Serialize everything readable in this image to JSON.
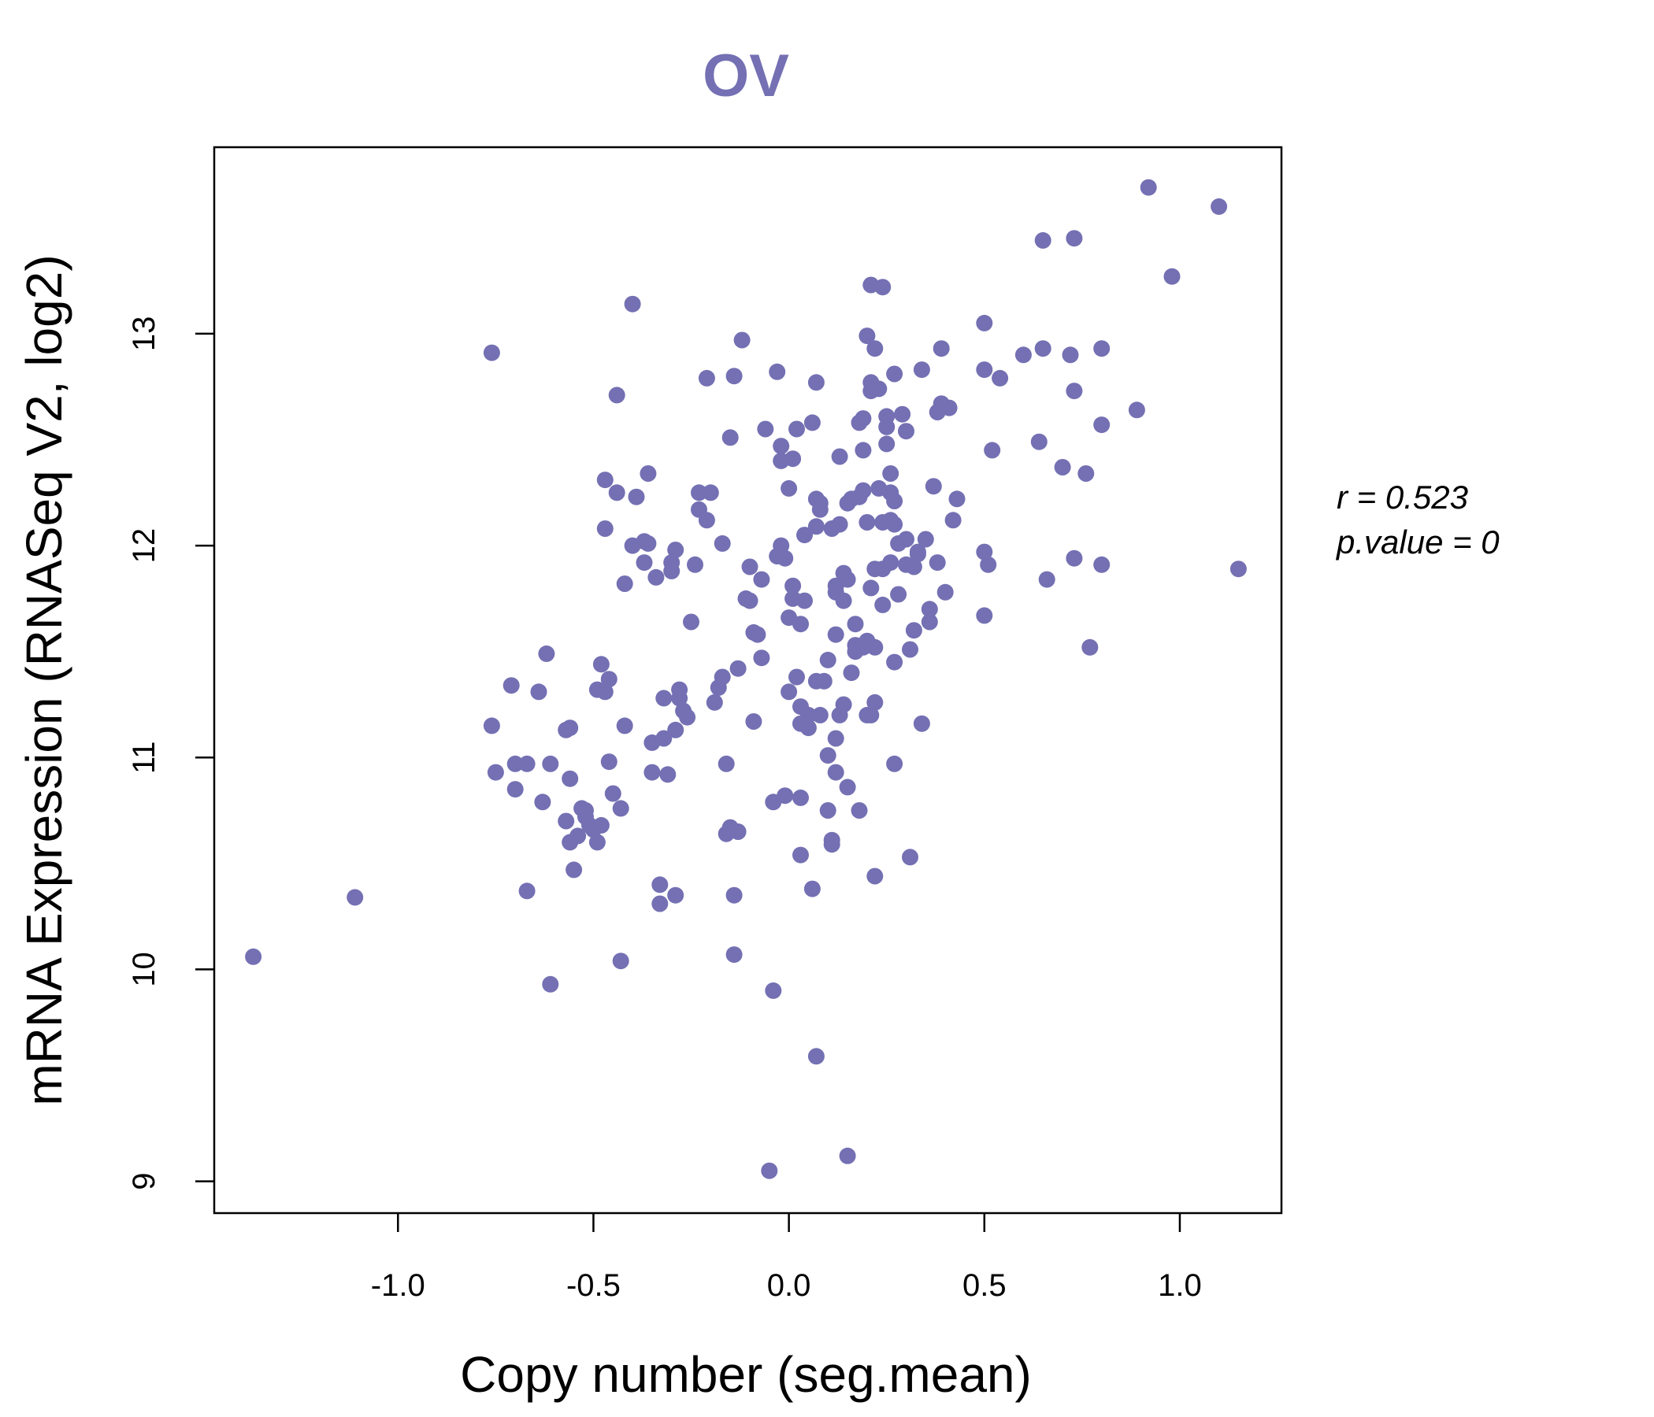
{
  "chart_data": {
    "type": "scatter",
    "title": "OV",
    "xlabel": "Copy number (seg.mean)",
    "ylabel": "mRNA Expression (RNASeq V2, log2)",
    "xlim": [
      -1.47,
      1.26
    ],
    "ylim": [
      8.85,
      13.88
    ],
    "x_ticks": [
      -1.0,
      -0.5,
      0.0,
      0.5,
      1.0
    ],
    "x_tick_labels": [
      "-1.0",
      "-0.5",
      "0.0",
      "0.5",
      "1.0"
    ],
    "y_ticks": [
      9,
      10,
      11,
      12,
      13
    ],
    "y_tick_labels": [
      "9",
      "10",
      "11",
      "12",
      "13"
    ],
    "grid": false,
    "point_color": "#7470B3",
    "stats": {
      "r_label": "r = 0.523",
      "p_label": "p.value = 0"
    },
    "points": [
      [
        -1.37,
        10.06
      ],
      [
        -1.11,
        10.34
      ],
      [
        -0.76,
        12.91
      ],
      [
        -0.76,
        11.15
      ],
      [
        -0.75,
        10.93
      ],
      [
        -0.71,
        11.34
      ],
      [
        -0.7,
        10.85
      ],
      [
        -0.7,
        10.97
      ],
      [
        -0.67,
        10.97
      ],
      [
        -0.67,
        10.37
      ],
      [
        -0.64,
        11.31
      ],
      [
        -0.63,
        10.79
      ],
      [
        -0.62,
        11.49
      ],
      [
        -0.61,
        10.97
      ],
      [
        -0.61,
        9.93
      ],
      [
        -0.57,
        11.13
      ],
      [
        -0.57,
        10.7
      ],
      [
        -0.56,
        10.6
      ],
      [
        -0.56,
        10.9
      ],
      [
        -0.56,
        11.14
      ],
      [
        -0.55,
        10.47
      ],
      [
        -0.54,
        10.63
      ],
      [
        -0.53,
        10.76
      ],
      [
        -0.52,
        10.75
      ],
      [
        -0.52,
        10.72
      ],
      [
        -0.51,
        10.68
      ],
      [
        -0.5,
        10.66
      ],
      [
        -0.49,
        10.6
      ],
      [
        -0.49,
        11.32
      ],
      [
        -0.48,
        11.44
      ],
      [
        -0.48,
        10.68
      ],
      [
        -0.47,
        11.31
      ],
      [
        -0.47,
        12.31
      ],
      [
        -0.47,
        12.08
      ],
      [
        -0.46,
        10.98
      ],
      [
        -0.46,
        11.37
      ],
      [
        -0.45,
        10.83
      ],
      [
        -0.44,
        12.25
      ],
      [
        -0.44,
        12.71
      ],
      [
        -0.43,
        10.04
      ],
      [
        -0.43,
        10.76
      ],
      [
        -0.42,
        11.82
      ],
      [
        -0.42,
        11.15
      ],
      [
        -0.4,
        12.0
      ],
      [
        -0.4,
        13.14
      ],
      [
        -0.39,
        12.23
      ],
      [
        -0.37,
        11.92
      ],
      [
        -0.37,
        12.02
      ],
      [
        -0.36,
        12.34
      ],
      [
        -0.36,
        12.01
      ],
      [
        -0.35,
        11.07
      ],
      [
        -0.35,
        10.93
      ],
      [
        -0.34,
        11.85
      ],
      [
        -0.33,
        10.4
      ],
      [
        -0.33,
        10.31
      ],
      [
        -0.32,
        11.28
      ],
      [
        -0.32,
        11.09
      ],
      [
        -0.31,
        10.92
      ],
      [
        -0.3,
        11.92
      ],
      [
        -0.3,
        11.88
      ],
      [
        -0.29,
        11.98
      ],
      [
        -0.29,
        10.35
      ],
      [
        -0.29,
        11.13
      ],
      [
        -0.28,
        11.32
      ],
      [
        -0.28,
        11.28
      ],
      [
        -0.27,
        11.22
      ],
      [
        -0.26,
        11.19
      ],
      [
        -0.25,
        11.64
      ],
      [
        -0.24,
        11.91
      ],
      [
        -0.23,
        12.17
      ],
      [
        -0.23,
        12.25
      ],
      [
        -0.21,
        12.12
      ],
      [
        -0.21,
        12.79
      ],
      [
        -0.2,
        12.25
      ],
      [
        -0.19,
        11.26
      ],
      [
        -0.18,
        11.33
      ],
      [
        -0.17,
        11.38
      ],
      [
        -0.17,
        12.01
      ],
      [
        -0.16,
        10.64
      ],
      [
        -0.16,
        10.97
      ],
      [
        -0.15,
        10.67
      ],
      [
        -0.15,
        12.51
      ],
      [
        -0.14,
        10.35
      ],
      [
        -0.14,
        10.07
      ],
      [
        -0.14,
        12.8
      ],
      [
        -0.13,
        10.65
      ],
      [
        -0.13,
        11.42
      ],
      [
        -0.12,
        12.97
      ],
      [
        -0.11,
        11.75
      ],
      [
        -0.1,
        11.9
      ],
      [
        -0.1,
        11.74
      ],
      [
        -0.09,
        11.17
      ],
      [
        -0.09,
        11.59
      ],
      [
        -0.08,
        11.58
      ],
      [
        -0.07,
        11.84
      ],
      [
        -0.07,
        11.47
      ],
      [
        -0.06,
        12.55
      ],
      [
        -0.05,
        9.05
      ],
      [
        -0.04,
        9.9
      ],
      [
        -0.04,
        10.79
      ],
      [
        -0.03,
        12.82
      ],
      [
        -0.03,
        11.95
      ],
      [
        -0.02,
        12.0
      ],
      [
        -0.02,
        12.4
      ],
      [
        -0.02,
        12.47
      ],
      [
        -0.01,
        10.82
      ],
      [
        -0.01,
        11.94
      ],
      [
        0.0,
        12.27
      ],
      [
        0.0,
        11.31
      ],
      [
        0.0,
        11.66
      ],
      [
        0.01,
        12.41
      ],
      [
        0.01,
        11.75
      ],
      [
        0.01,
        11.81
      ],
      [
        0.02,
        11.38
      ],
      [
        0.02,
        12.55
      ],
      [
        0.03,
        11.63
      ],
      [
        0.03,
        11.24
      ],
      [
        0.03,
        10.81
      ],
      [
        0.03,
        10.54
      ],
      [
        0.03,
        11.16
      ],
      [
        0.04,
        12.05
      ],
      [
        0.04,
        11.74
      ],
      [
        0.05,
        11.14
      ],
      [
        0.05,
        11.2
      ],
      [
        0.06,
        12.58
      ],
      [
        0.06,
        10.38
      ],
      [
        0.07,
        12.09
      ],
      [
        0.07,
        12.22
      ],
      [
        0.07,
        11.36
      ],
      [
        0.07,
        12.77
      ],
      [
        0.07,
        9.59
      ],
      [
        0.08,
        12.17
      ],
      [
        0.08,
        11.2
      ],
      [
        0.08,
        12.2
      ],
      [
        0.09,
        11.36
      ],
      [
        0.1,
        11.01
      ],
      [
        0.1,
        11.46
      ],
      [
        0.1,
        10.75
      ],
      [
        0.11,
        10.61
      ],
      [
        0.11,
        10.59
      ],
      [
        0.11,
        12.08
      ],
      [
        0.12,
        11.09
      ],
      [
        0.12,
        11.81
      ],
      [
        0.12,
        11.78
      ],
      [
        0.12,
        10.93
      ],
      [
        0.12,
        11.58
      ],
      [
        0.13,
        12.42
      ],
      [
        0.13,
        12.1
      ],
      [
        0.13,
        11.2
      ],
      [
        0.14,
        11.25
      ],
      [
        0.14,
        11.87
      ],
      [
        0.14,
        11.74
      ],
      [
        0.15,
        12.2
      ],
      [
        0.15,
        11.84
      ],
      [
        0.15,
        9.12
      ],
      [
        0.15,
        10.86
      ],
      [
        0.16,
        11.4
      ],
      [
        0.16,
        12.22
      ],
      [
        0.17,
        11.53
      ],
      [
        0.17,
        11.63
      ],
      [
        0.17,
        11.5
      ],
      [
        0.18,
        10.75
      ],
      [
        0.18,
        12.23
      ],
      [
        0.18,
        12.58
      ],
      [
        0.19,
        11.52
      ],
      [
        0.19,
        12.45
      ],
      [
        0.19,
        12.26
      ],
      [
        0.19,
        12.6
      ],
      [
        0.2,
        12.99
      ],
      [
        0.2,
        11.55
      ],
      [
        0.2,
        12.11
      ],
      [
        0.2,
        11.2
      ],
      [
        0.21,
        12.73
      ],
      [
        0.21,
        12.77
      ],
      [
        0.21,
        11.8
      ],
      [
        0.21,
        13.23
      ],
      [
        0.21,
        11.2
      ],
      [
        0.22,
        11.52
      ],
      [
        0.22,
        11.89
      ],
      [
        0.22,
        10.44
      ],
      [
        0.22,
        11.26
      ],
      [
        0.22,
        12.93
      ],
      [
        0.23,
        12.27
      ],
      [
        0.23,
        12.74
      ],
      [
        0.24,
        13.22
      ],
      [
        0.24,
        11.89
      ],
      [
        0.24,
        11.72
      ],
      [
        0.24,
        12.11
      ],
      [
        0.25,
        12.61
      ],
      [
        0.25,
        12.56
      ],
      [
        0.25,
        12.48
      ],
      [
        0.26,
        12.34
      ],
      [
        0.26,
        11.92
      ],
      [
        0.26,
        12.12
      ],
      [
        0.26,
        12.25
      ],
      [
        0.27,
        12.21
      ],
      [
        0.27,
        11.45
      ],
      [
        0.27,
        12.81
      ],
      [
        0.27,
        10.97
      ],
      [
        0.27,
        12.1
      ],
      [
        0.28,
        11.77
      ],
      [
        0.28,
        12.01
      ],
      [
        0.29,
        12.62
      ],
      [
        0.3,
        12.03
      ],
      [
        0.3,
        11.91
      ],
      [
        0.3,
        12.54
      ],
      [
        0.31,
        11.51
      ],
      [
        0.31,
        10.53
      ],
      [
        0.32,
        11.6
      ],
      [
        0.32,
        11.9
      ],
      [
        0.33,
        11.97
      ],
      [
        0.33,
        11.96
      ],
      [
        0.34,
        12.83
      ],
      [
        0.34,
        11.16
      ],
      [
        0.35,
        12.03
      ],
      [
        0.36,
        11.7
      ],
      [
        0.36,
        11.64
      ],
      [
        0.37,
        12.28
      ],
      [
        0.38,
        12.63
      ],
      [
        0.38,
        11.92
      ],
      [
        0.39,
        12.67
      ],
      [
        0.39,
        12.93
      ],
      [
        0.4,
        11.78
      ],
      [
        0.41,
        12.65
      ],
      [
        0.42,
        12.12
      ],
      [
        0.43,
        12.22
      ],
      [
        0.5,
        13.05
      ],
      [
        0.5,
        12.83
      ],
      [
        0.5,
        11.97
      ],
      [
        0.5,
        11.67
      ],
      [
        0.51,
        11.91
      ],
      [
        0.52,
        12.45
      ],
      [
        0.54,
        12.79
      ],
      [
        0.6,
        12.9
      ],
      [
        0.64,
        12.49
      ],
      [
        0.65,
        13.44
      ],
      [
        0.65,
        12.93
      ],
      [
        0.66,
        11.84
      ],
      [
        0.7,
        12.37
      ],
      [
        0.72,
        12.9
      ],
      [
        0.73,
        13.45
      ],
      [
        0.73,
        12.73
      ],
      [
        0.73,
        11.94
      ],
      [
        0.76,
        12.34
      ],
      [
        0.77,
        11.52
      ],
      [
        0.8,
        12.57
      ],
      [
        0.8,
        12.93
      ],
      [
        0.8,
        11.91
      ],
      [
        0.89,
        12.64
      ],
      [
        0.92,
        13.69
      ],
      [
        0.98,
        13.27
      ],
      [
        1.1,
        13.6
      ],
      [
        1.15,
        11.89
      ]
    ]
  }
}
